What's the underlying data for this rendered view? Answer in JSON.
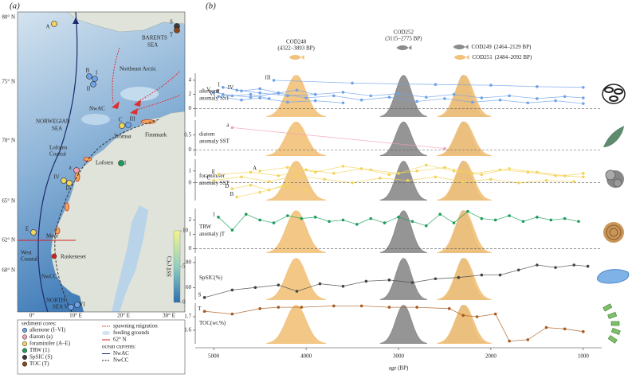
{
  "figure": {
    "label_a": "(a)",
    "label_b": "(b)"
  },
  "map": {
    "lat_labels": [
      "80° N",
      "75° N",
      "70° N",
      "65° N",
      "62° N",
      "60° N"
    ],
    "lon_labels": [
      "0°",
      "10° E",
      "20° E",
      "30° E"
    ],
    "places": [
      "BARENTS",
      "SEA",
      "Northeast Arctic",
      "NORWEGIAN",
      "SEA",
      "NwAC",
      "Lofoten",
      "Coastal",
      "Tromsø",
      "Finnmark",
      "Lofoten",
      "Møre",
      "West",
      "Coastal",
      "Ruskeneset",
      "NwCC",
      "NORTH",
      "SEA"
    ],
    "sites": [
      {
        "label": "A",
        "color": "#f2d55a"
      },
      {
        "label": "B",
        "color": "#6fa3e8"
      },
      {
        "label": "I",
        "color": "#6fa3e8"
      },
      {
        "label": "II",
        "color": "#6fa3e8"
      },
      {
        "label": "C",
        "color": "#f2d55a"
      },
      {
        "label": "III",
        "color": "#6fa3e8"
      },
      {
        "label": "IV",
        "color": "#f2d55a"
      },
      {
        "label": "D",
        "color": "#f2d55a"
      },
      {
        "label": "a",
        "color": "#f3a0b3"
      },
      {
        "label": "1",
        "color": "#1a9e5c"
      },
      {
        "label": "E",
        "color": "#f2d55a"
      },
      {
        "label": "V",
        "color": "#6fa3e8"
      },
      {
        "label": "VI",
        "color": "#6fa3e8"
      },
      {
        "label": "S",
        "color": "#3a3a3a"
      },
      {
        "label": "T",
        "color": "#8b4513"
      }
    ],
    "colorbar": {
      "label": "SST (°C)",
      "ticks": [
        0,
        5,
        10
      ]
    }
  },
  "legend": {
    "cores_title": "sediment cores:",
    "cores": [
      {
        "name": "alkenone (I–VI)",
        "color": "#6fa3e8"
      },
      {
        "name": "diatom (a)",
        "color": "#f3a0b3"
      },
      {
        "name": "foraminifer (A–E)",
        "color": "#f2d55a"
      },
      {
        "name": "TRW (1)",
        "color": "#1a9e5c"
      },
      {
        "name": "SpSIC (S)",
        "color": "#3a3a3a"
      },
      {
        "name": "TOC (T)",
        "color": "#8b4513"
      }
    ],
    "other": [
      "spawning migration",
      "feeding grounds",
      "62° N"
    ],
    "currents_title": "ocean currents:",
    "currents": [
      "NwAC",
      "NwCC"
    ]
  },
  "cod_peaks": [
    {
      "name": "COD248",
      "range": "(4322–3893 BP)",
      "from": 4322,
      "to": 3893,
      "color": "#f2c27c"
    },
    {
      "name": "COD252",
      "range": "(3115–2775 BP)",
      "from": 3115,
      "to": 2775,
      "color": "#8c8c8c"
    },
    {
      "name": "COD249",
      "range": "(2464–2129 BP)",
      "from": 2464,
      "to": 2129,
      "color": "#8c8c8c"
    },
    {
      "name": "COD251",
      "range": "(2484–2092 BP)",
      "from": 2484,
      "to": 2092,
      "color": "#f2c27c"
    }
  ],
  "chart_data": [
    {
      "type": "line",
      "ylabel": [
        "alkenone",
        "anomaly SST"
      ],
      "ylim": [
        -1.2,
        5
      ],
      "yticks": [
        0,
        2,
        4
      ],
      "zero_line": true,
      "series": [
        {
          "name": "I",
          "color": "#6fa3e8",
          "x": [
            4900,
            4700,
            4500,
            4300,
            4100,
            3900,
            3600,
            3300,
            3000,
            2700,
            2400,
            2100,
            1800,
            1500,
            1200,
            1000
          ],
          "values": [
            3.0,
            2.5,
            2.8,
            2.2,
            2.6,
            2.0,
            2.3,
            1.8,
            2.1,
            1.6,
            2.0,
            1.5,
            1.8,
            1.4,
            1.7,
            1.5
          ]
        },
        {
          "name": "II",
          "color": "#6fa3e8",
          "x": [
            4900,
            4600,
            4300,
            4000,
            3700,
            3400,
            3100,
            2800,
            2500,
            2200,
            1900,
            1600,
            1300,
            1000
          ],
          "values": [
            2.0,
            1.6,
            2.2,
            1.5,
            1.8,
            1.2,
            1.6,
            1.0,
            1.4,
            0.9,
            1.2,
            0.8,
            1.1,
            0.7
          ]
        },
        {
          "name": "III",
          "color": "#6fa3e8",
          "x": [
            4350,
            3500,
            2600,
            2000,
            1500,
            1000
          ],
          "values": [
            4.0,
            3.6,
            3.4,
            3.3,
            3.1,
            3.0
          ]
        },
        {
          "name": "IV",
          "color": "#6fa3e8",
          "x": [
            4750,
            4500,
            4200,
            3900
          ],
          "values": [
            2.6,
            2.2,
            1.8,
            2.0
          ]
        },
        {
          "name": "V",
          "color": "#6fa3e8",
          "x": [
            5000,
            4800,
            4600,
            4400
          ],
          "values": [
            2.3,
            1.8,
            2.0,
            1.4
          ]
        },
        {
          "name": "VI",
          "color": "#6fa3e8",
          "x": [
            4950,
            4700,
            4500,
            4200,
            3900,
            3600
          ],
          "values": [
            1.7,
            1.2,
            1.5,
            0.9,
            1.1,
            0.8
          ]
        }
      ]
    },
    {
      "type": "line",
      "ylabel": [
        "diatom",
        "anomaly SST"
      ],
      "ylim": [
        -0.2,
        1.0
      ],
      "yticks": [
        0,
        0.5
      ],
      "zero_line": true,
      "series": [
        {
          "name": "a",
          "color": "#f3a0b3",
          "x": [
            4800,
            2500
          ],
          "values": [
            0.75,
            0.05
          ]
        }
      ]
    },
    {
      "type": "line",
      "ylabel": [
        "foraminifer",
        "anomaly SST"
      ],
      "ylim": [
        -1.5,
        2
      ],
      "yticks": [
        0,
        1
      ],
      "zero_line": true,
      "series": [
        {
          "name": "A",
          "color": "#f2d55a",
          "x": [
            4500,
            4200,
            3900,
            3600,
            3300,
            3000,
            2700,
            2400,
            2100,
            1800,
            1500,
            1200,
            1000
          ],
          "values": [
            1.0,
            1.3,
            0.9,
            1.4,
            1.1,
            0.8,
            1.5,
            1.0,
            0.7,
            1.2,
            0.9,
            0.6,
            0.8
          ]
        },
        {
          "name": "B",
          "color": "#f2d55a",
          "x": [
            4750,
            4500,
            4250,
            4000
          ],
          "values": [
            -1.2,
            -0.8,
            -0.3,
            -0.6
          ]
        },
        {
          "name": "C",
          "color": "#f2d55a",
          "x": [
            5000,
            4700,
            4400,
            4100,
            3800,
            3500,
            3200,
            2900,
            2600,
            2300,
            2000,
            1700,
            1400,
            1100
          ],
          "values": [
            0.2,
            0.5,
            0.1,
            0.6,
            0.3,
            0.0,
            0.4,
            0.2,
            0.5,
            0.1,
            0.3,
            0.0,
            0.2,
            0.1
          ]
        },
        {
          "name": "D",
          "color": "#f2d55a",
          "x": [
            4800,
            4600,
            4400,
            4200
          ],
          "values": [
            -0.5,
            -0.2,
            -0.6,
            -0.1
          ]
        },
        {
          "name": "E",
          "color": "#f2d55a",
          "x": [
            4950,
            4600,
            4300,
            4000,
            3700,
            3400,
            3100,
            2800,
            2500,
            2200,
            1900,
            1600,
            1300,
            1000
          ],
          "values": [
            0.7,
            0.9,
            0.6,
            1.1,
            0.8,
            1.2,
            0.7,
            1.0,
            1.3,
            0.8,
            1.1,
            0.9,
            0.6,
            0.5
          ]
        }
      ]
    },
    {
      "type": "line",
      "ylabel": [
        "TRW",
        "anomaly jT"
      ],
      "ylim": [
        -0.3,
        2.8
      ],
      "yticks": [
        0,
        1,
        2
      ],
      "zero_line": true,
      "series": [
        {
          "name": "1",
          "color": "#1a9e5c",
          "x": [
            4950,
            4800,
            4650,
            4500,
            4350,
            4200,
            4050,
            3900,
            3750,
            3600,
            3450,
            3300,
            3150,
            3000,
            2850,
            2700,
            2550,
            2400,
            2250,
            2100,
            1950,
            1800,
            1650,
            1500,
            1350,
            1200,
            1050
          ],
          "values": [
            2.2,
            1.3,
            2.4,
            2.0,
            1.8,
            2.3,
            2.1,
            2.2,
            1.9,
            2.0,
            1.7,
            2.1,
            1.8,
            2.2,
            1.9,
            1.6,
            2.4,
            1.8,
            2.6,
            2.1,
            2.0,
            2.3,
            1.9,
            2.2,
            2.0,
            2.1,
            1.9
          ]
        }
      ]
    },
    {
      "type": "line",
      "ylabel": [
        "SpSIC(%)"
      ],
      "ylim": [
        50,
        85
      ],
      "yticks": [
        60,
        80
      ],
      "zero_line": false,
      "series": [
        {
          "name": "S",
          "color": "#444444",
          "x": [
            5100,
            4800,
            4550,
            4300,
            4100,
            3850,
            3600,
            3350,
            3100,
            2850,
            2600,
            2350,
            2100,
            1900,
            1700,
            1500,
            1300,
            1100,
            950
          ],
          "values": [
            52,
            58,
            60,
            62,
            57,
            63,
            61,
            65,
            66,
            64,
            67,
            68,
            70,
            70,
            74,
            78,
            76,
            78,
            77
          ]
        }
      ]
    },
    {
      "type": "line",
      "ylabel": [
        "TOC(wt.%)"
      ],
      "ylim": [
        1.5,
        1.8
      ],
      "yticks": [
        1.6,
        1.7
      ],
      "zero_line": false,
      "xlim": [
        5200,
        800
      ],
      "xticks": [
        5000,
        4000,
        3000,
        2000,
        1000
      ],
      "xlabel": "age (BP)",
      "series": [
        {
          "name": "T",
          "color": "#a85a1e",
          "x": [
            5100,
            4800,
            4500,
            4300,
            4050,
            3700,
            3400,
            3100,
            2800,
            2450,
            2300,
            2150,
            1950,
            1800,
            1600,
            1400,
            1200,
            1000
          ],
          "values": [
            1.74,
            1.72,
            1.76,
            1.77,
            1.77,
            1.78,
            1.78,
            1.77,
            1.77,
            1.76,
            1.71,
            1.7,
            1.72,
            1.52,
            1.53,
            1.62,
            1.61,
            1.59
          ]
        }
      ]
    }
  ]
}
